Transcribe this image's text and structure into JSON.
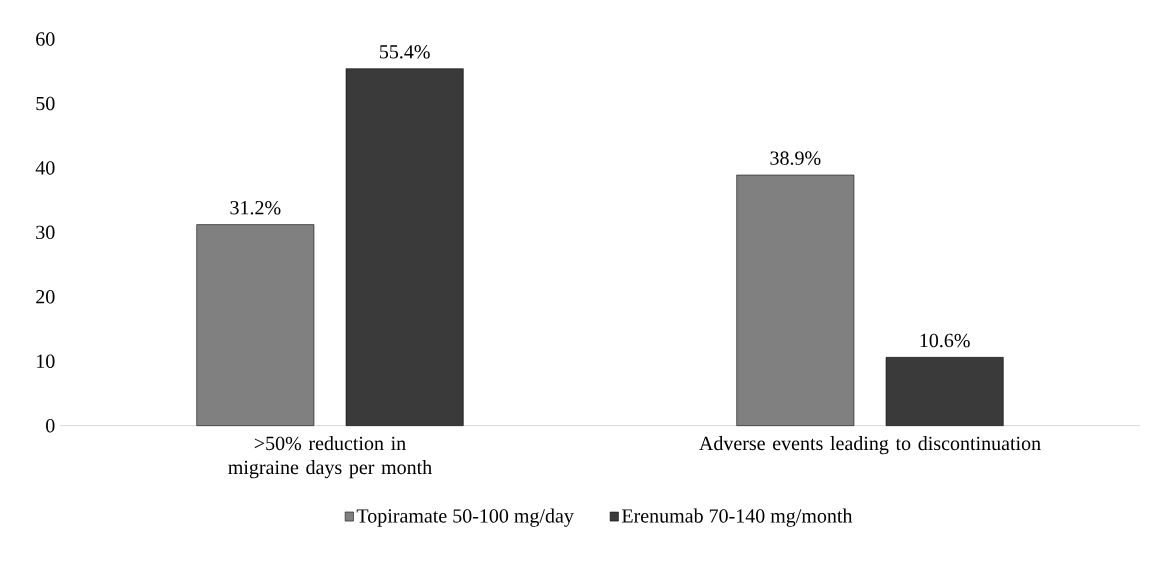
{
  "chart_data": {
    "type": "bar",
    "categories": [
      ">50% reduction in migraine days per month",
      "Adverse events leading to discontinuation"
    ],
    "series": [
      {
        "name": "Topiramate 50-100 mg/day",
        "color": "#808080",
        "values": [
          31.2,
          38.9
        ],
        "value_labels": [
          "31.2%",
          "38.9%"
        ]
      },
      {
        "name": "Erenumab 70-140 mg/month",
        "color": "#3a3a3a",
        "values": [
          55.4,
          10.6
        ],
        "value_labels": [
          "55.4%",
          "10.6%"
        ]
      }
    ],
    "ylim": [
      0,
      60
    ],
    "yticks": [
      0,
      10,
      20,
      30,
      40,
      50,
      60
    ],
    "grid": false,
    "legend": "bottom"
  }
}
